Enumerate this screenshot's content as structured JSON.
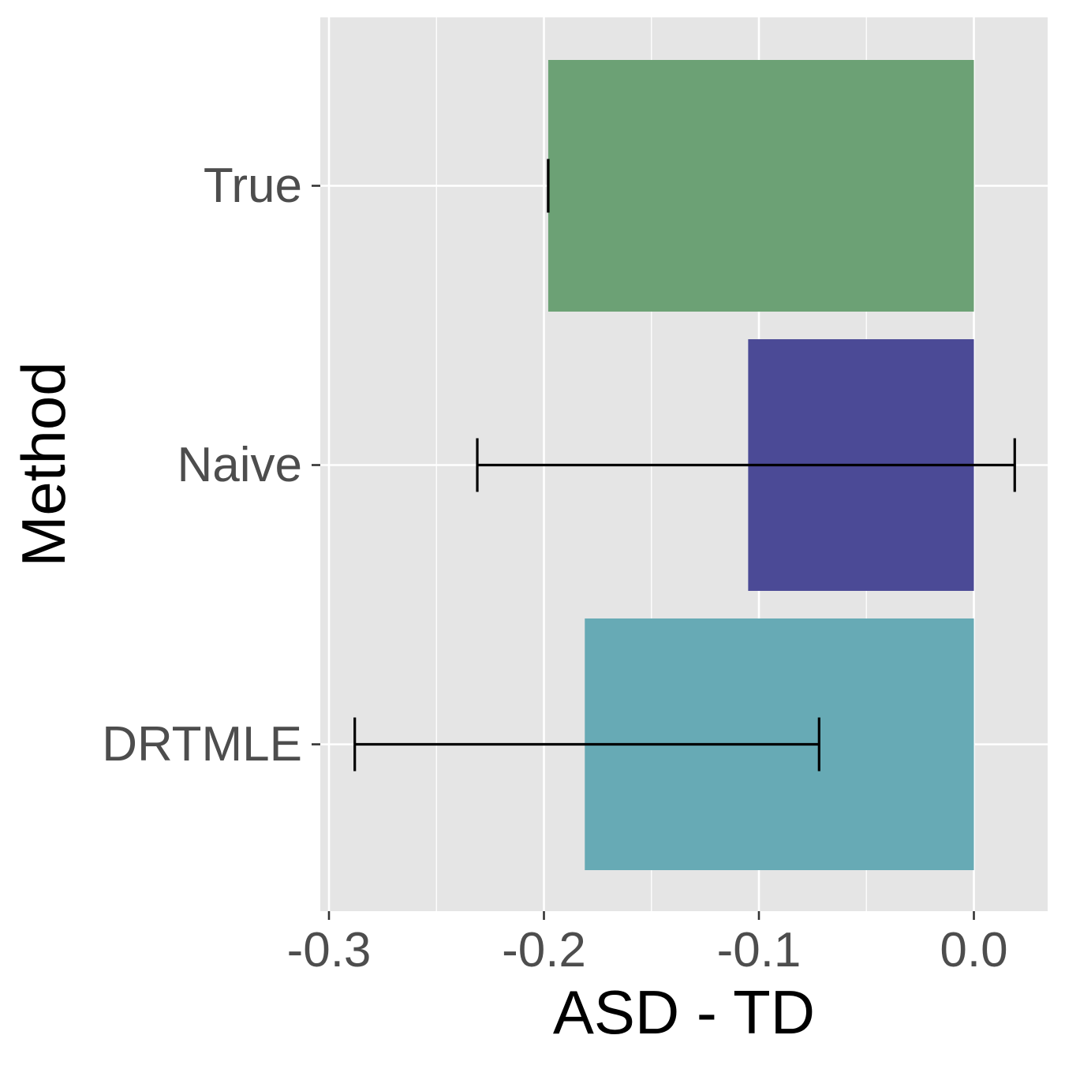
{
  "chart_data": {
    "type": "bar",
    "orientation": "horizontal",
    "xlabel": "ASD - TD",
    "ylabel": "Method",
    "xlim": [
      -0.3,
      0.035
    ],
    "x_ticks": [
      -0.3,
      -0.2,
      -0.1,
      0.0
    ],
    "x_tick_labels": [
      "-0.3",
      "-0.2",
      "-0.1",
      "0.0"
    ],
    "grid": true,
    "categories": [
      "True",
      "Naive",
      "DRTMLE"
    ],
    "values": [
      -0.198,
      -0.105,
      -0.181
    ],
    "error_bars": [
      {
        "lower": -0.198,
        "upper": -0.198
      },
      {
        "lower": -0.231,
        "upper": 0.019
      },
      {
        "lower": -0.288,
        "upper": -0.072
      }
    ],
    "colors": [
      "#6ca175",
      "#4b4a96",
      "#67aab5"
    ],
    "background_color": "#e5e5e5",
    "grid_color": "#ffffff",
    "errorbar_color": "#000000"
  }
}
